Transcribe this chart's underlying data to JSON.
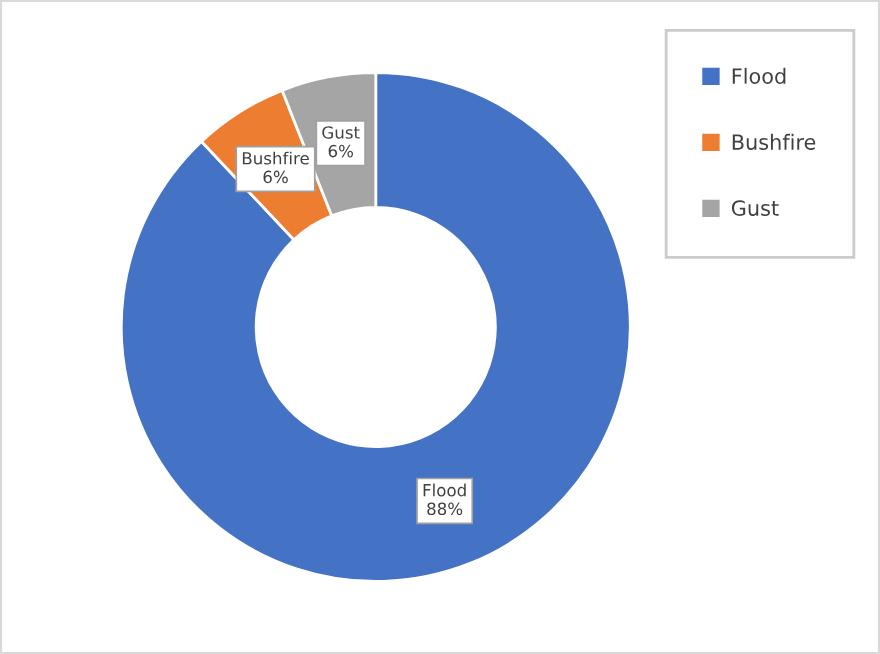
{
  "chart_data": {
    "type": "donut",
    "categories": [
      "Flood",
      "Bushfire",
      "Gust"
    ],
    "values": [
      88,
      6,
      6
    ],
    "colors": [
      "#4472c4",
      "#ed7d31",
      "#a5a5a5"
    ],
    "value_labels": [
      "88%",
      "6%",
      "6%"
    ],
    "legend": "top right"
  }
}
